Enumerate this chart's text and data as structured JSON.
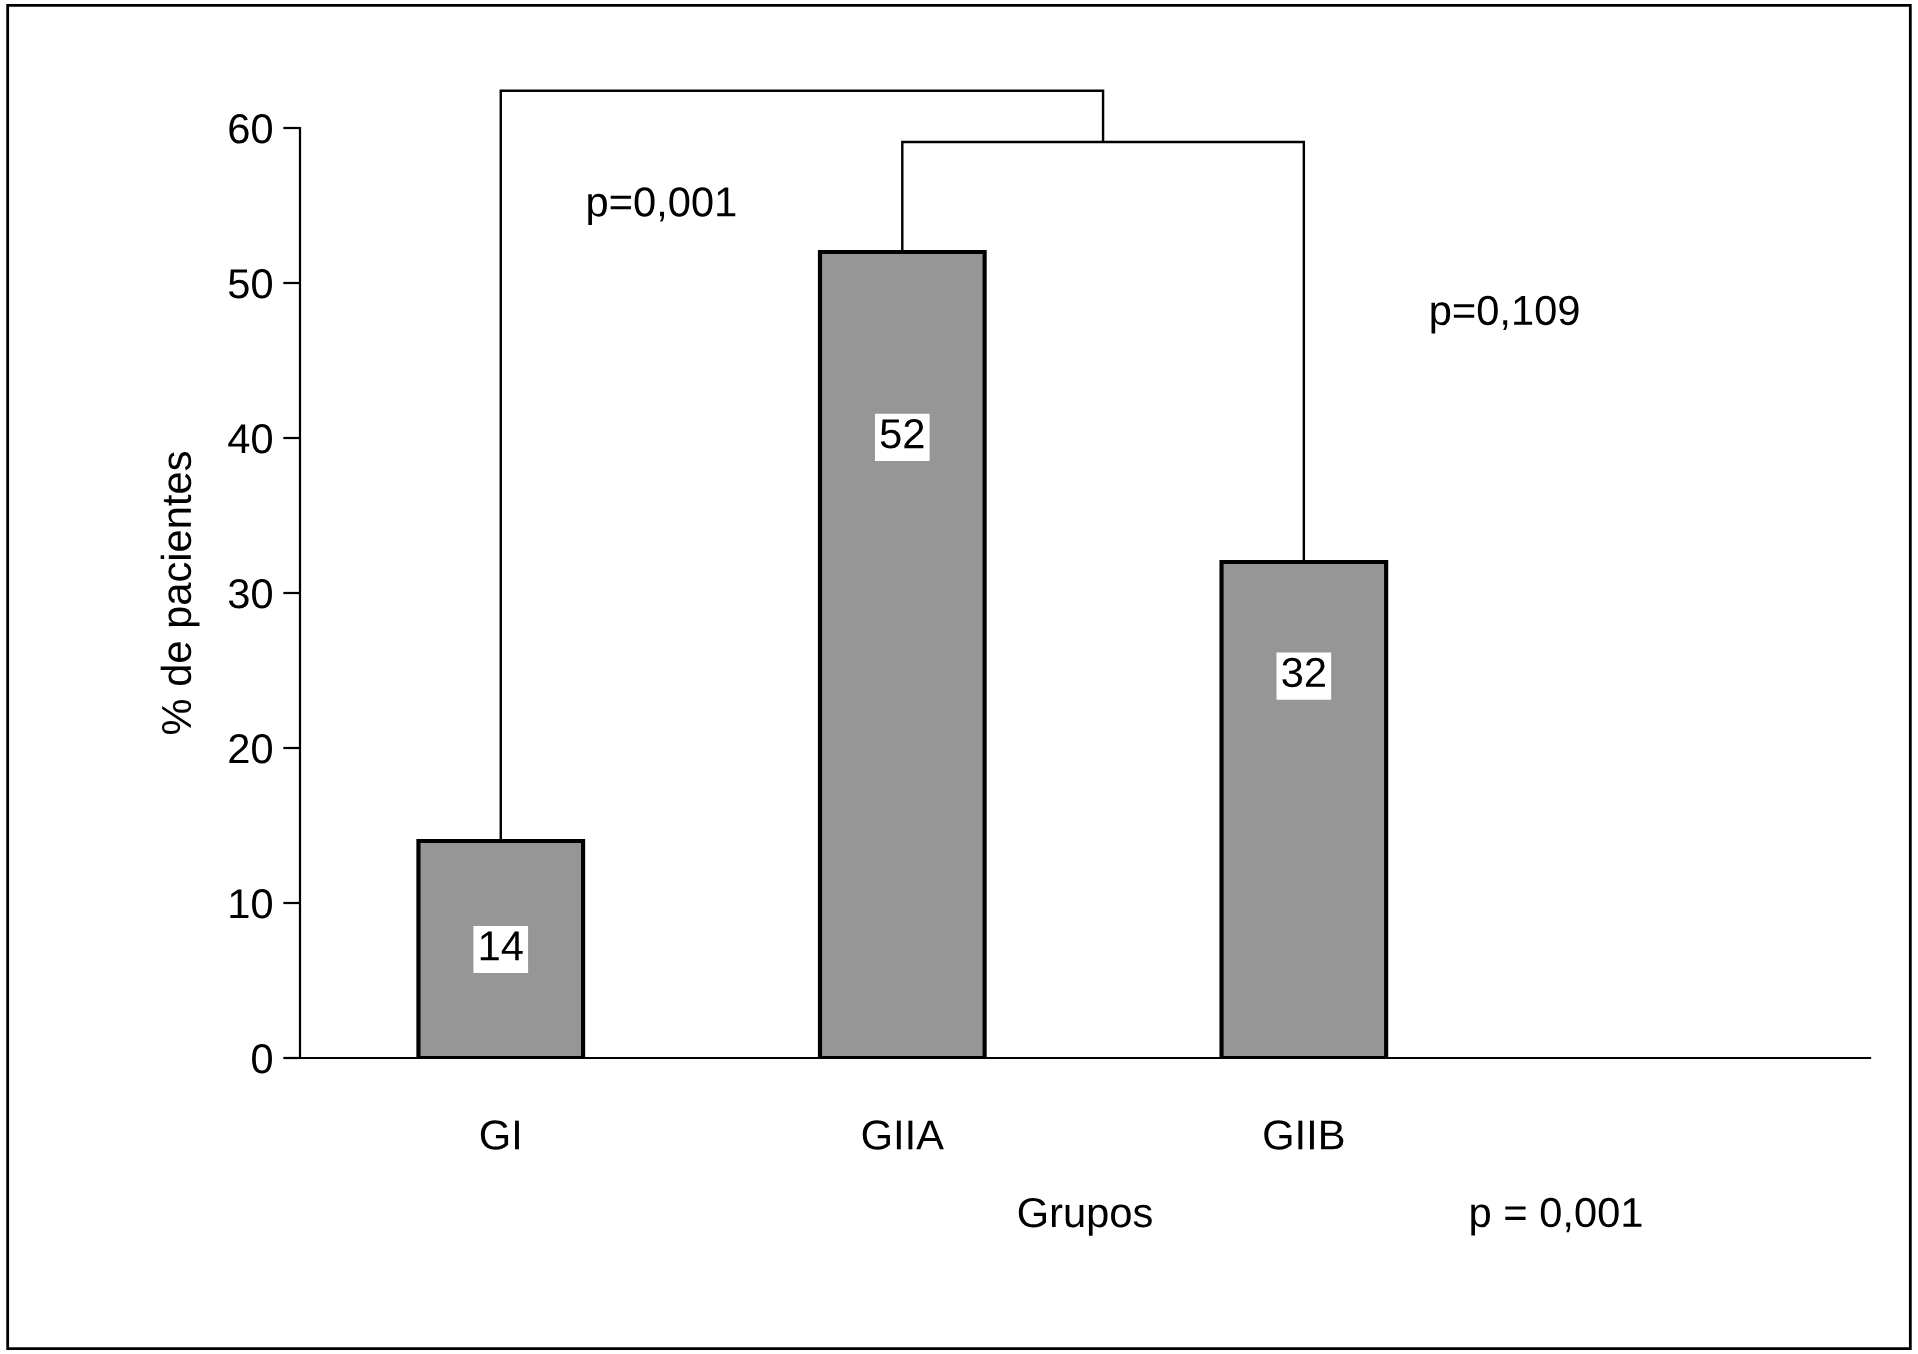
{
  "chart_data": {
    "type": "bar",
    "categories": [
      "GI",
      "GIIA",
      "GIIB"
    ],
    "values": [
      14,
      52,
      32
    ],
    "color": "#969696",
    "xlabel": "Grupos",
    "ylabel": "% de pacientes",
    "ylim": [
      0,
      60
    ],
    "yticks": [
      0,
      10,
      20,
      30,
      40,
      50,
      60
    ],
    "grid": false,
    "data_labels": true,
    "annotations": [
      "p=0,001",
      "p=0,109",
      "p = 0,001"
    ]
  }
}
